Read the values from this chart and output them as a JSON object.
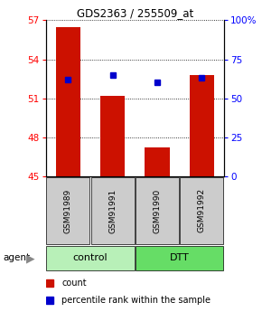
{
  "title": "GDS2363 / 255509_at",
  "samples": [
    "GSM91989",
    "GSM91991",
    "GSM91990",
    "GSM91992"
  ],
  "bar_values": [
    56.5,
    51.2,
    47.2,
    52.8
  ],
  "percentile_values": [
    62,
    65,
    60,
    63
  ],
  "bar_color": "#cc1100",
  "dot_color": "#0000cc",
  "ylim_left": [
    45,
    57
  ],
  "ylim_right": [
    0,
    100
  ],
  "yticks_left": [
    45,
    48,
    51,
    54,
    57
  ],
  "yticks_right": [
    0,
    25,
    50,
    75,
    100
  ],
  "groups": [
    {
      "label": "control",
      "indices": [
        0,
        1
      ],
      "color": "#b8f0b8"
    },
    {
      "label": "DTT",
      "indices": [
        2,
        3
      ],
      "color": "#66dd66"
    }
  ],
  "agent_label": "agent",
  "bar_width": 0.55,
  "sample_row_color": "#cccccc",
  "legend_count_label": "count",
  "legend_pct_label": "percentile rank within the sample"
}
